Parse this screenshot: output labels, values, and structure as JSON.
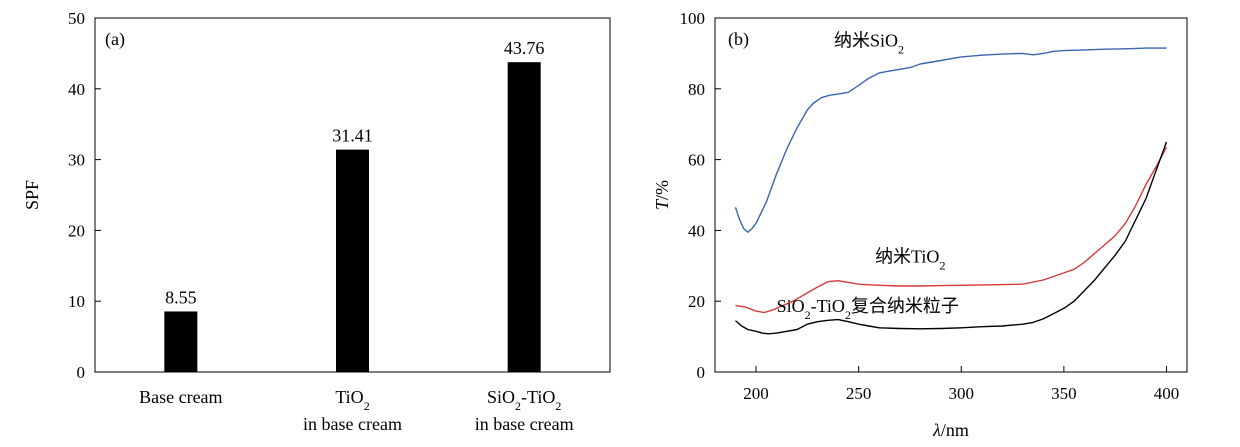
{
  "chart_data": [
    {
      "type": "bar",
      "panel_label": "(a)",
      "ylabel": "SPF",
      "ylim": [
        0,
        50
      ],
      "yticks": [
        0,
        10,
        20,
        30,
        40,
        50
      ],
      "categories": [
        {
          "lines": [
            "Base cream"
          ]
        },
        {
          "lines": [
            {
              "pre": "TiO",
              "sub": "2",
              "post": ""
            },
            "in base cream"
          ]
        },
        {
          "lines": [
            {
              "pre": "SiO",
              "sub": "2",
              "post": "-TiO",
              "sub2": "2"
            },
            "in base cream"
          ]
        }
      ],
      "values": [
        8.55,
        31.41,
        43.76
      ],
      "data_labels": [
        "8.55",
        "31.41",
        "43.76"
      ],
      "bar_color": "#000000"
    },
    {
      "type": "line",
      "panel_label": "(b)",
      "xlabel": {
        "italic": "λ",
        "rest": "/nm"
      },
      "ylabel": {
        "italic": "T",
        "rest": "/%"
      },
      "xlim": [
        180,
        410
      ],
      "xticks": [
        200,
        250,
        300,
        350,
        400
      ],
      "ylim": [
        0,
        100
      ],
      "yticks": [
        0,
        20,
        40,
        60,
        80,
        100
      ],
      "series": [
        {
          "name": "纳米SiO2",
          "label": {
            "pre": "纳米SiO",
            "sub": "2",
            "post": ""
          },
          "label_at": [
            238,
            92
          ],
          "color": "#3a66b0",
          "points": [
            [
              190,
              46.5
            ],
            [
              192,
              43
            ],
            [
              194,
              40.5
            ],
            [
              196,
              39.5
            ],
            [
              198,
              40.5
            ],
            [
              200,
              42
            ],
            [
              205,
              48
            ],
            [
              210,
              56
            ],
            [
              215,
              63
            ],
            [
              220,
              69
            ],
            [
              225,
              74
            ],
            [
              228,
              76
            ],
            [
              232,
              77.5
            ],
            [
              236,
              78.2
            ],
            [
              240,
              78.5
            ],
            [
              245,
              79
            ],
            [
              250,
              81
            ],
            [
              255,
              83
            ],
            [
              260,
              84.5
            ],
            [
              265,
              85
            ],
            [
              270,
              85.5
            ],
            [
              275,
              86
            ],
            [
              280,
              87
            ],
            [
              290,
              88
            ],
            [
              300,
              89
            ],
            [
              310,
              89.5
            ],
            [
              320,
              89.8
            ],
            [
              330,
              90
            ],
            [
              335,
              89.6
            ],
            [
              340,
              90
            ],
            [
              345,
              90.6
            ],
            [
              350,
              90.8
            ],
            [
              360,
              91
            ],
            [
              370,
              91.2
            ],
            [
              380,
              91.3
            ],
            [
              390,
              91.5
            ],
            [
              400,
              91.5
            ]
          ]
        },
        {
          "name": "纳米TiO2",
          "label": {
            "pre": "纳米TiO",
            "sub": "2",
            "post": ""
          },
          "label_at": [
            258,
            31
          ],
          "color": "#d63a3a",
          "points": [
            [
              190,
              18.8
            ],
            [
              195,
              18.3
            ],
            [
              200,
              17.2
            ],
            [
              204,
              16.8
            ],
            [
              208,
              17.5
            ],
            [
              212,
              18.5
            ],
            [
              218,
              20
            ],
            [
              224,
              22
            ],
            [
              230,
              24
            ],
            [
              235,
              25.5
            ],
            [
              240,
              25.8
            ],
            [
              245,
              25.3
            ],
            [
              250,
              24.8
            ],
            [
              260,
              24.5
            ],
            [
              270,
              24.3
            ],
            [
              280,
              24.3
            ],
            [
              290,
              24.4
            ],
            [
              300,
              24.5
            ],
            [
              310,
              24.6
            ],
            [
              320,
              24.7
            ],
            [
              330,
              24.8
            ],
            [
              340,
              26
            ],
            [
              350,
              28
            ],
            [
              355,
              29
            ],
            [
              360,
              31
            ],
            [
              365,
              33.5
            ],
            [
              370,
              36
            ],
            [
              375,
              38.5
            ],
            [
              380,
              42
            ],
            [
              385,
              47
            ],
            [
              390,
              53
            ],
            [
              395,
              58
            ],
            [
              400,
              63.5
            ]
          ]
        },
        {
          "name": "SiO2-TiO2复合纳米粒子",
          "label": {
            "pre": "SiO",
            "sub": "2",
            "post": "-TiO",
            "sub2": "2",
            "post2": "复合纳米粒子"
          },
          "label_at": [
            210,
            17
          ],
          "color": "#000000",
          "points": [
            [
              190,
              14.5
            ],
            [
              193,
              13
            ],
            [
              196,
              12
            ],
            [
              200,
              11.5
            ],
            [
              203,
              11
            ],
            [
              206,
              10.8
            ],
            [
              210,
              11
            ],
            [
              215,
              11.5
            ],
            [
              220,
              12
            ],
            [
              225,
              13.5
            ],
            [
              230,
              14.2
            ],
            [
              235,
              14.6
            ],
            [
              240,
              14.8
            ],
            [
              245,
              14.2
            ],
            [
              250,
              13.5
            ],
            [
              255,
              13
            ],
            [
              260,
              12.5
            ],
            [
              270,
              12.3
            ],
            [
              280,
              12.2
            ],
            [
              290,
              12.3
            ],
            [
              300,
              12.5
            ],
            [
              310,
              12.8
            ],
            [
              320,
              13
            ],
            [
              330,
              13.5
            ],
            [
              335,
              14
            ],
            [
              340,
              15
            ],
            [
              345,
              16.5
            ],
            [
              350,
              18
            ],
            [
              355,
              20
            ],
            [
              360,
              23
            ],
            [
              365,
              26
            ],
            [
              370,
              29.5
            ],
            [
              375,
              33
            ],
            [
              380,
              37
            ],
            [
              385,
              43
            ],
            [
              390,
              49
            ],
            [
              395,
              57
            ],
            [
              400,
              65
            ]
          ]
        }
      ]
    }
  ]
}
